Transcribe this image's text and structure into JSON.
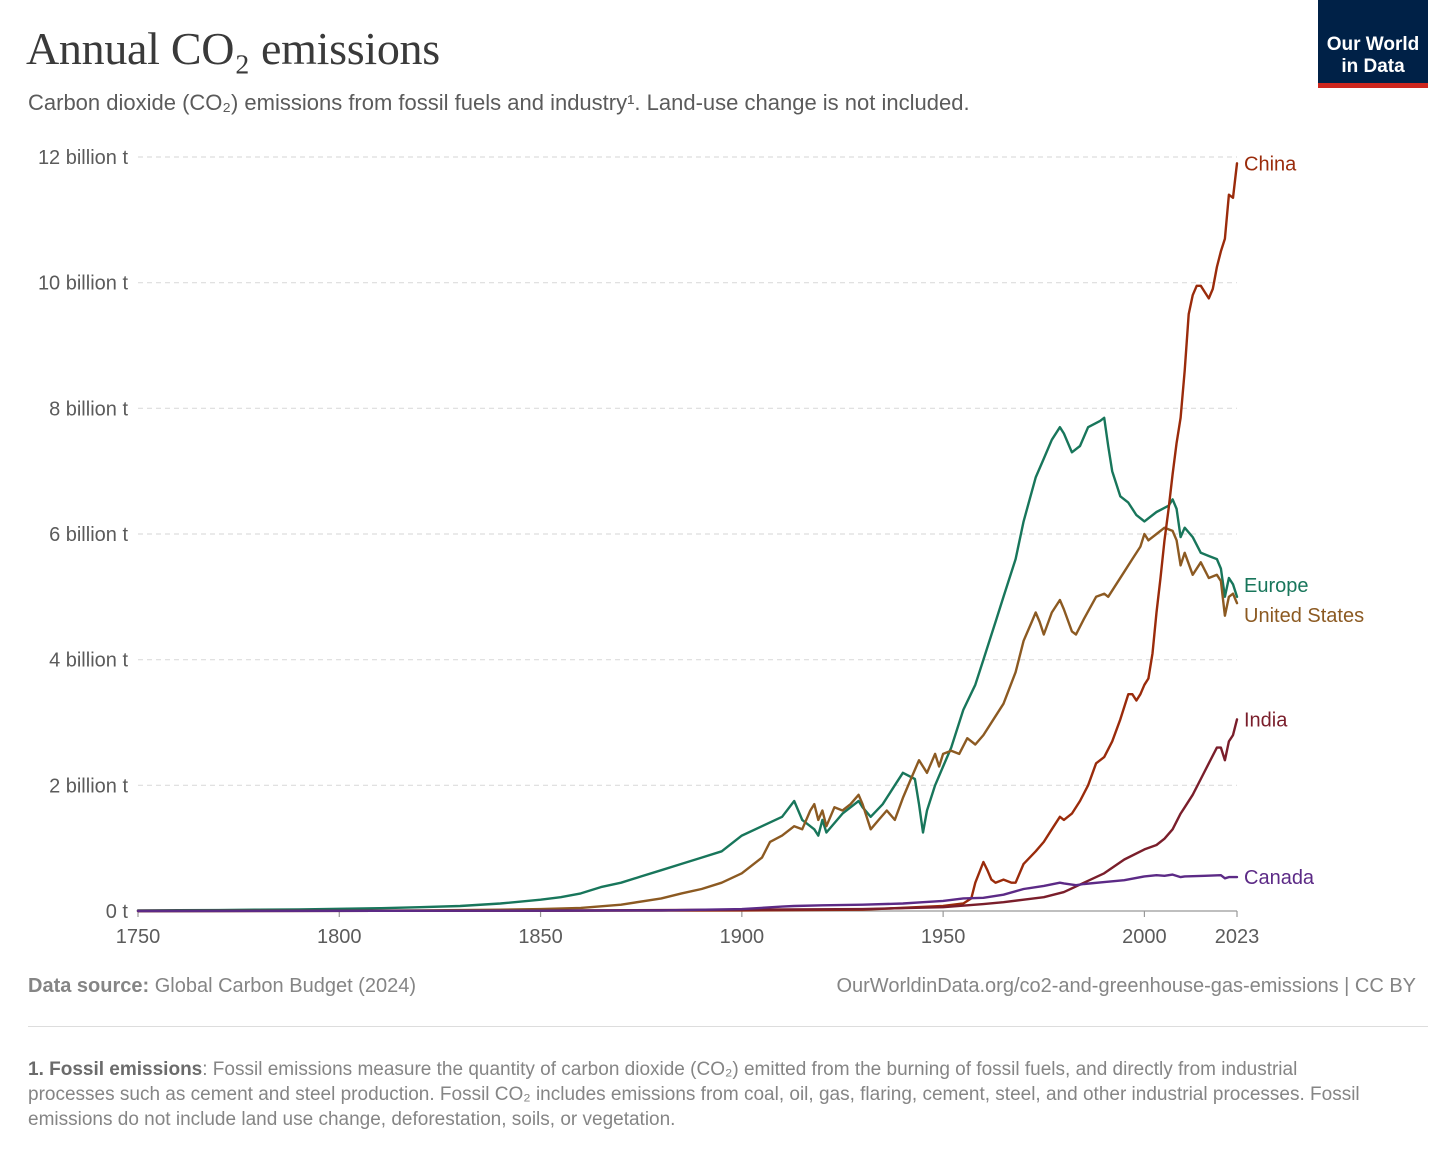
{
  "header": {
    "title": "Annual CO₂ emissions",
    "subtitle": "Carbon dioxide (CO₂) emissions from fossil fuels and industry¹. Land-use change is not included.",
    "logo_line1": "Our World",
    "logo_line2": "in Data"
  },
  "footer": {
    "source_label": "Data source:",
    "source_value": " Global Carbon Budget (2024)",
    "url": "OurWorldinData.org/co2-and-greenhouse-gas-emissions | CC BY",
    "note_label": "1. Fossil emissions",
    "note_text": ": Fossil emissions measure the quantity of carbon dioxide (CO₂) emitted from the burning of fossil fuels, and directly from industrial processes such as cement and steel production. Fossil CO₂ includes emissions from coal, oil, gas, flaring, cement, steel, and other industrial processes. Fossil emissions do not include land use change, deforestation, soils, or vegetation."
  },
  "colors": {
    "China": "#9a2b0b",
    "Europe": "#18765b",
    "United States": "#8c5a22",
    "India": "#7a1e2b",
    "Canada": "#5c2a86",
    "grid": "#dddddd",
    "axis_text": "#5b5b5b"
  },
  "chart_data": {
    "type": "line",
    "ylim": [
      0,
      12
    ],
    "xlim": [
      1750,
      2023
    ],
    "y_unit": "billion t",
    "y_ticks": [
      {
        "value": 0,
        "label": "0 t"
      },
      {
        "value": 2,
        "label": "2 billion t"
      },
      {
        "value": 4,
        "label": "4 billion t"
      },
      {
        "value": 6,
        "label": "6 billion t"
      },
      {
        "value": 8,
        "label": "8 billion t"
      },
      {
        "value": 10,
        "label": "10 billion t"
      },
      {
        "value": 12,
        "label": "12 billion t"
      }
    ],
    "x_ticks": [
      {
        "value": 1750,
        "label": "1750"
      },
      {
        "value": 1800,
        "label": "1800"
      },
      {
        "value": 1850,
        "label": "1850"
      },
      {
        "value": 1900,
        "label": "1900"
      },
      {
        "value": 1950,
        "label": "1950"
      },
      {
        "value": 2000,
        "label": "2000"
      },
      {
        "value": 2023,
        "label": "2023"
      }
    ],
    "grid": true,
    "legend": "line-end labels",
    "series": [
      {
        "name": "Europe",
        "points": [
          [
            1750,
            0.01
          ],
          [
            1760,
            0.012
          ],
          [
            1770,
            0.015
          ],
          [
            1780,
            0.02
          ],
          [
            1790,
            0.025
          ],
          [
            1800,
            0.035
          ],
          [
            1810,
            0.045
          ],
          [
            1820,
            0.06
          ],
          [
            1830,
            0.08
          ],
          [
            1840,
            0.12
          ],
          [
            1850,
            0.18
          ],
          [
            1855,
            0.22
          ],
          [
            1860,
            0.28
          ],
          [
            1865,
            0.38
          ],
          [
            1870,
            0.45
          ],
          [
            1875,
            0.55
          ],
          [
            1880,
            0.65
          ],
          [
            1885,
            0.75
          ],
          [
            1890,
            0.85
          ],
          [
            1895,
            0.95
          ],
          [
            1900,
            1.2
          ],
          [
            1905,
            1.35
          ],
          [
            1910,
            1.5
          ],
          [
            1913,
            1.75
          ],
          [
            1915,
            1.45
          ],
          [
            1918,
            1.3
          ],
          [
            1919,
            1.2
          ],
          [
            1920,
            1.45
          ],
          [
            1921,
            1.25
          ],
          [
            1925,
            1.55
          ],
          [
            1929,
            1.75
          ],
          [
            1930,
            1.65
          ],
          [
            1932,
            1.5
          ],
          [
            1935,
            1.7
          ],
          [
            1938,
            2.0
          ],
          [
            1940,
            2.2
          ],
          [
            1943,
            2.1
          ],
          [
            1944,
            1.7
          ],
          [
            1945,
            1.25
          ],
          [
            1946,
            1.6
          ],
          [
            1948,
            2.0
          ],
          [
            1950,
            2.3
          ],
          [
            1952,
            2.6
          ],
          [
            1955,
            3.2
          ],
          [
            1958,
            3.6
          ],
          [
            1960,
            4.0
          ],
          [
            1963,
            4.6
          ],
          [
            1965,
            5.0
          ],
          [
            1968,
            5.6
          ],
          [
            1970,
            6.2
          ],
          [
            1973,
            6.9
          ],
          [
            1975,
            7.2
          ],
          [
            1977,
            7.5
          ],
          [
            1979,
            7.7
          ],
          [
            1980,
            7.6
          ],
          [
            1982,
            7.3
          ],
          [
            1984,
            7.4
          ],
          [
            1986,
            7.7
          ],
          [
            1989,
            7.8
          ],
          [
            1990,
            7.85
          ],
          [
            1991,
            7.4
          ],
          [
            1992,
            7.0
          ],
          [
            1994,
            6.6
          ],
          [
            1996,
            6.5
          ],
          [
            1998,
            6.3
          ],
          [
            2000,
            6.2
          ],
          [
            2003,
            6.35
          ],
          [
            2006,
            6.45
          ],
          [
            2007,
            6.55
          ],
          [
            2008,
            6.4
          ],
          [
            2009,
            5.95
          ],
          [
            2010,
            6.1
          ],
          [
            2012,
            5.95
          ],
          [
            2014,
            5.7
          ],
          [
            2016,
            5.65
          ],
          [
            2018,
            5.6
          ],
          [
            2019,
            5.45
          ],
          [
            2020,
            5.0
          ],
          [
            2021,
            5.3
          ],
          [
            2022,
            5.2
          ],
          [
            2023,
            5.0
          ]
        ]
      },
      {
        "name": "United States",
        "points": [
          [
            1750,
            0.0
          ],
          [
            1800,
            0.005
          ],
          [
            1820,
            0.01
          ],
          [
            1840,
            0.02
          ],
          [
            1850,
            0.03
          ],
          [
            1860,
            0.05
          ],
          [
            1870,
            0.1
          ],
          [
            1880,
            0.2
          ],
          [
            1885,
            0.28
          ],
          [
            1890,
            0.35
          ],
          [
            1895,
            0.45
          ],
          [
            1900,
            0.6
          ],
          [
            1905,
            0.85
          ],
          [
            1907,
            1.1
          ],
          [
            1910,
            1.2
          ],
          [
            1913,
            1.35
          ],
          [
            1915,
            1.3
          ],
          [
            1917,
            1.6
          ],
          [
            1918,
            1.7
          ],
          [
            1919,
            1.45
          ],
          [
            1920,
            1.6
          ],
          [
            1921,
            1.35
          ],
          [
            1923,
            1.65
          ],
          [
            1925,
            1.6
          ],
          [
            1927,
            1.7
          ],
          [
            1929,
            1.85
          ],
          [
            1930,
            1.7
          ],
          [
            1932,
            1.3
          ],
          [
            1934,
            1.45
          ],
          [
            1936,
            1.6
          ],
          [
            1938,
            1.45
          ],
          [
            1940,
            1.8
          ],
          [
            1942,
            2.1
          ],
          [
            1944,
            2.4
          ],
          [
            1945,
            2.3
          ],
          [
            1946,
            2.2
          ],
          [
            1948,
            2.5
          ],
          [
            1949,
            2.3
          ],
          [
            1950,
            2.5
          ],
          [
            1952,
            2.55
          ],
          [
            1954,
            2.5
          ],
          [
            1956,
            2.75
          ],
          [
            1958,
            2.65
          ],
          [
            1960,
            2.8
          ],
          [
            1963,
            3.1
          ],
          [
            1965,
            3.3
          ],
          [
            1968,
            3.8
          ],
          [
            1970,
            4.3
          ],
          [
            1972,
            4.6
          ],
          [
            1973,
            4.75
          ],
          [
            1974,
            4.6
          ],
          [
            1975,
            4.4
          ],
          [
            1977,
            4.75
          ],
          [
            1979,
            4.95
          ],
          [
            1980,
            4.8
          ],
          [
            1982,
            4.45
          ],
          [
            1983,
            4.4
          ],
          [
            1985,
            4.65
          ],
          [
            1988,
            5.0
          ],
          [
            1990,
            5.05
          ],
          [
            1991,
            5.0
          ],
          [
            1993,
            5.2
          ],
          [
            1995,
            5.4
          ],
          [
            1997,
            5.6
          ],
          [
            1999,
            5.8
          ],
          [
            2000,
            6.0
          ],
          [
            2001,
            5.9
          ],
          [
            2003,
            6.0
          ],
          [
            2005,
            6.1
          ],
          [
            2007,
            6.05
          ],
          [
            2008,
            5.9
          ],
          [
            2009,
            5.5
          ],
          [
            2010,
            5.7
          ],
          [
            2012,
            5.35
          ],
          [
            2014,
            5.55
          ],
          [
            2016,
            5.3
          ],
          [
            2018,
            5.35
          ],
          [
            2019,
            5.25
          ],
          [
            2020,
            4.7
          ],
          [
            2021,
            5.0
          ],
          [
            2022,
            5.05
          ],
          [
            2023,
            4.9
          ]
        ]
      },
      {
        "name": "China",
        "points": [
          [
            1750,
            0.0
          ],
          [
            1900,
            0.01
          ],
          [
            1930,
            0.02
          ],
          [
            1950,
            0.08
          ],
          [
            1955,
            0.12
          ],
          [
            1957,
            0.2
          ],
          [
            1958,
            0.45
          ],
          [
            1960,
            0.78
          ],
          [
            1961,
            0.65
          ],
          [
            1962,
            0.5
          ],
          [
            1963,
            0.45
          ],
          [
            1965,
            0.5
          ],
          [
            1967,
            0.45
          ],
          [
            1968,
            0.45
          ],
          [
            1970,
            0.75
          ],
          [
            1973,
            0.95
          ],
          [
            1975,
            1.1
          ],
          [
            1977,
            1.3
          ],
          [
            1979,
            1.5
          ],
          [
            1980,
            1.45
          ],
          [
            1982,
            1.55
          ],
          [
            1984,
            1.75
          ],
          [
            1986,
            2.0
          ],
          [
            1988,
            2.35
          ],
          [
            1990,
            2.45
          ],
          [
            1992,
            2.7
          ],
          [
            1994,
            3.05
          ],
          [
            1996,
            3.45
          ],
          [
            1997,
            3.45
          ],
          [
            1998,
            3.35
          ],
          [
            1999,
            3.45
          ],
          [
            2000,
            3.6
          ],
          [
            2001,
            3.7
          ],
          [
            2002,
            4.1
          ],
          [
            2003,
            4.75
          ],
          [
            2004,
            5.3
          ],
          [
            2005,
            5.9
          ],
          [
            2006,
            6.4
          ],
          [
            2007,
            6.95
          ],
          [
            2008,
            7.45
          ],
          [
            2009,
            7.85
          ],
          [
            2010,
            8.6
          ],
          [
            2011,
            9.5
          ],
          [
            2012,
            9.8
          ],
          [
            2013,
            9.95
          ],
          [
            2014,
            9.95
          ],
          [
            2015,
            9.85
          ],
          [
            2016,
            9.75
          ],
          [
            2017,
            9.9
          ],
          [
            2018,
            10.25
          ],
          [
            2019,
            10.5
          ],
          [
            2020,
            10.7
          ],
          [
            2021,
            11.4
          ],
          [
            2022,
            11.35
          ],
          [
            2023,
            11.9
          ]
        ]
      },
      {
        "name": "India",
        "points": [
          [
            1750,
            0.0
          ],
          [
            1850,
            0.005
          ],
          [
            1900,
            0.02
          ],
          [
            1930,
            0.03
          ],
          [
            1950,
            0.06
          ],
          [
            1960,
            0.11
          ],
          [
            1965,
            0.14
          ],
          [
            1970,
            0.18
          ],
          [
            1975,
            0.22
          ],
          [
            1980,
            0.3
          ],
          [
            1985,
            0.45
          ],
          [
            1990,
            0.6
          ],
          [
            1995,
            0.82
          ],
          [
            2000,
            0.98
          ],
          [
            2003,
            1.05
          ],
          [
            2005,
            1.15
          ],
          [
            2007,
            1.3
          ],
          [
            2009,
            1.55
          ],
          [
            2010,
            1.65
          ],
          [
            2012,
            1.85
          ],
          [
            2014,
            2.1
          ],
          [
            2016,
            2.35
          ],
          [
            2018,
            2.6
          ],
          [
            2019,
            2.6
          ],
          [
            2020,
            2.4
          ],
          [
            2021,
            2.7
          ],
          [
            2022,
            2.8
          ],
          [
            2023,
            3.05
          ]
        ]
      },
      {
        "name": "Canada",
        "points": [
          [
            1750,
            0.0
          ],
          [
            1850,
            0.005
          ],
          [
            1880,
            0.01
          ],
          [
            1900,
            0.03
          ],
          [
            1910,
            0.07
          ],
          [
            1913,
            0.08
          ],
          [
            1920,
            0.09
          ],
          [
            1930,
            0.1
          ],
          [
            1940,
            0.12
          ],
          [
            1945,
            0.14
          ],
          [
            1950,
            0.16
          ],
          [
            1955,
            0.2
          ],
          [
            1960,
            0.21
          ],
          [
            1965,
            0.26
          ],
          [
            1970,
            0.35
          ],
          [
            1975,
            0.4
          ],
          [
            1979,
            0.45
          ],
          [
            1980,
            0.44
          ],
          [
            1983,
            0.41
          ],
          [
            1985,
            0.43
          ],
          [
            1990,
            0.46
          ],
          [
            1995,
            0.49
          ],
          [
            2000,
            0.55
          ],
          [
            2003,
            0.57
          ],
          [
            2005,
            0.56
          ],
          [
            2007,
            0.58
          ],
          [
            2009,
            0.54
          ],
          [
            2010,
            0.55
          ],
          [
            2015,
            0.56
          ],
          [
            2019,
            0.57
          ],
          [
            2020,
            0.52
          ],
          [
            2021,
            0.54
          ],
          [
            2023,
            0.54
          ]
        ]
      }
    ]
  }
}
